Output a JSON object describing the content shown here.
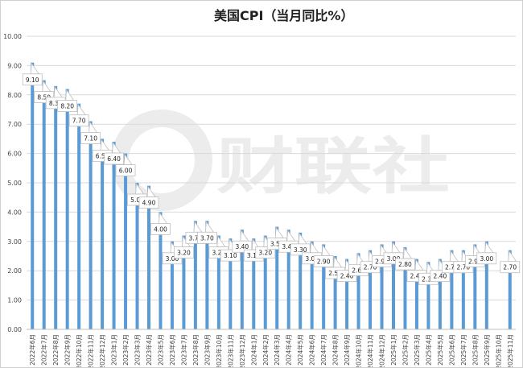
{
  "chart_data": {
    "type": "bar",
    "title": "美国CPI（当月同比%）",
    "xlabel": "",
    "ylabel": "",
    "ylim": [
      0,
      10
    ],
    "yticks": [
      "0.00",
      "1.00",
      "2.00",
      "3.00",
      "4.00",
      "5.00",
      "6.00",
      "7.00",
      "8.00",
      "9.00",
      "10.00"
    ],
    "grid": true,
    "legend": "none",
    "bar_color": "#5b9bd5",
    "watermark": "财联社",
    "categories": [
      "2022年6月",
      "2022年7月",
      "2022年8月",
      "2022年9月",
      "2022年10月",
      "2022年11月",
      "2022年12月",
      "2023年1月",
      "2023年2月",
      "2023年3月",
      "2023年4月",
      "2023年5月",
      "2023年6月",
      "2023年7月",
      "2023年8月",
      "2023年9月",
      "2023年10月",
      "2023年11月",
      "2023年12月",
      "2024年1月",
      "2024年2月",
      "2024年3月",
      "2024年4月",
      "2024年5月",
      "2024年6月",
      "2024年7月",
      "2024年8月",
      "2024年9月",
      "2024年10月",
      "2024年11月",
      "2024年12月",
      "2025年1月",
      "2025年2月",
      "2025年3月",
      "2025年4月",
      "2025年5月",
      "2025年6月",
      "2025年7月",
      "2025年8月",
      "2025年9月",
      "2025年10月",
      "2025年11月"
    ],
    "values": [
      9.1,
      8.5,
      8.3,
      8.2,
      7.7,
      7.1,
      6.5,
      6.4,
      6.0,
      5.0,
      4.9,
      4.0,
      3.0,
      3.2,
      3.7,
      3.7,
      3.2,
      3.1,
      3.4,
      3.1,
      3.2,
      3.5,
      3.4,
      3.3,
      3.0,
      2.9,
      2.5,
      2.4,
      2.6,
      2.7,
      2.9,
      3.0,
      2.8,
      2.4,
      2.3,
      2.4,
      2.7,
      2.7,
      2.9,
      3.0,
      null,
      2.7
    ],
    "data_labels": [
      "9.10",
      "8.50",
      "8.30",
      "8.20",
      "7.70",
      "7.10",
      "6.50",
      "6.40",
      "6.00",
      "5.00",
      "4.90",
      "4.00",
      "3.00",
      "3.20",
      "3.70",
      "3.70",
      "3.20",
      "3.10",
      "3.40",
      "3.10",
      "3.20",
      "3.50",
      "3.40",
      "3.30",
      "3.00",
      "2.90",
      "2.50",
      "2.40",
      "2.60",
      "2.70",
      "2.90",
      "3.00",
      "2.80",
      "2.40",
      "2.30",
      "2.40",
      "2.70",
      "2.70",
      "2.90",
      "3.00",
      "",
      "2.70"
    ]
  }
}
